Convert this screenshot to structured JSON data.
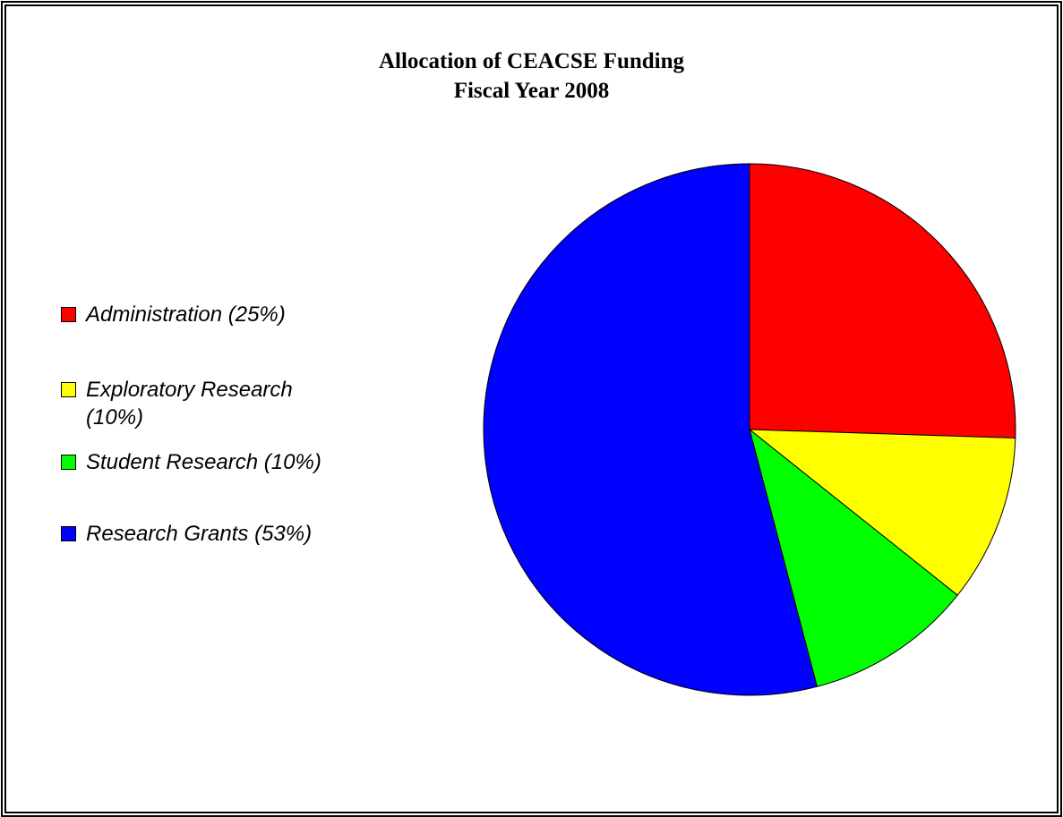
{
  "chart_data": {
    "type": "pie",
    "title": "Allocation of CEACSE Funding",
    "subtitle": "Fiscal Year 2008",
    "categories": [
      "Administration (25%)",
      "Exploratory Research (10%)",
      "Student Research (10%)",
      "Research Grants (53%)"
    ],
    "values": [
      25,
      10,
      10,
      53
    ],
    "colors": [
      "#ff0000",
      "#ffff00",
      "#00ff00",
      "#0000ff"
    ],
    "legend": "left"
  }
}
